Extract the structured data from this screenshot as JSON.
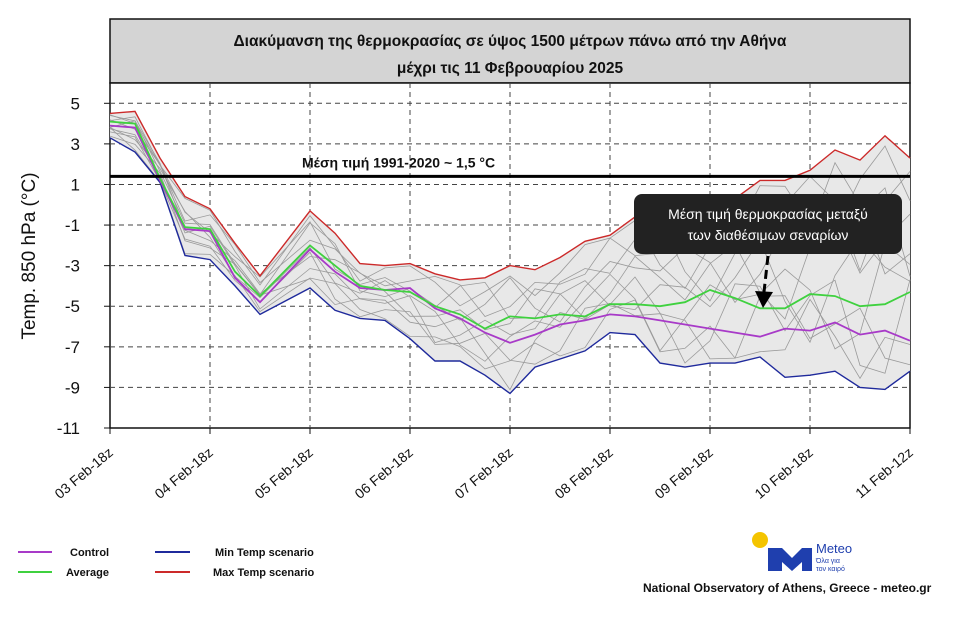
{
  "chart_data": {
    "type": "line",
    "title_line1": "Διακύμανση της θερμοκρασίας σε ύψος 1500 μέτρων πάνω από την Αθήνα",
    "title_line2": "μέχρι τις 11 Φεβρουαρίου 2025",
    "ylabel": "Temp. 850 hPa (°C)",
    "ylim": [
      -11,
      6
    ],
    "yticks": [
      5,
      3,
      1,
      -1,
      -3,
      -5,
      -7,
      -9,
      -11
    ],
    "xlim": [
      0,
      8
    ],
    "xtick_positions": [
      0,
      1,
      2,
      3,
      4,
      5,
      6,
      7,
      8
    ],
    "xtick_labels": [
      "03 Feb-18z",
      "04 Feb-18z",
      "05 Feb-18z",
      "06 Feb-18z",
      "07 Feb-18z",
      "08 Feb-18z",
      "09 Feb-18z",
      "10 Feb-18z",
      "11 Feb-12z"
    ],
    "grid": true,
    "reference_line": {
      "value": 1.4,
      "label": "Μέση τιμή 1991-2020  ~ 1,5 °C"
    },
    "annotation": {
      "text_line1": "Μέση τιμή θερμοκρασίας μεταξύ",
      "text_line2": "των διαθέσιμων σεναρίων"
    },
    "x": [
      0,
      0.25,
      0.5,
      0.75,
      1.0,
      1.25,
      1.5,
      2.0,
      2.25,
      2.5,
      2.75,
      3.0,
      3.25,
      3.5,
      3.75,
      4.0,
      4.25,
      4.5,
      4.75,
      5.0,
      5.25,
      5.5,
      5.75,
      6.0,
      6.25,
      6.5,
      6.75,
      7.0,
      7.25,
      7.5,
      7.75,
      8.0
    ],
    "series": [
      {
        "name": "Max Temp scenario",
        "color": "#cc2a2a",
        "values": [
          4.5,
          4.6,
          2.3,
          0.4,
          -0.2,
          -1.9,
          -3.5,
          -0.3,
          -1.4,
          -2.9,
          -3.0,
          -2.9,
          -3.4,
          -3.7,
          -3.6,
          -3.0,
          -3.2,
          -2.6,
          -1.8,
          -1.5,
          -0.6,
          -0.5,
          -1.2,
          -0.9,
          0.3,
          1.2,
          1.2,
          1.7,
          2.7,
          2.2,
          3.4,
          2.3
        ]
      },
      {
        "name": "Min Temp scenario",
        "color": "#1f2a9c",
        "values": [
          3.3,
          2.6,
          1.1,
          -2.5,
          -2.7,
          -4.0,
          -5.4,
          -4.1,
          -5.2,
          -5.6,
          -5.7,
          -6.6,
          -7.7,
          -7.7,
          -8.4,
          -9.3,
          -8.0,
          -7.6,
          -7.2,
          -6.3,
          -6.4,
          -7.8,
          -8.0,
          -7.8,
          -7.8,
          -7.5,
          -8.5,
          -8.4,
          -8.2,
          -9.0,
          -9.1,
          -8.2
        ]
      },
      {
        "name": "Control",
        "color": "#a83ac8",
        "values": [
          3.9,
          3.8,
          1.2,
          -1.2,
          -1.3,
          -3.6,
          -4.8,
          -2.2,
          -3.3,
          -4.1,
          -4.2,
          -4.1,
          -5.1,
          -5.6,
          -6.3,
          -6.8,
          -6.4,
          -5.9,
          -5.7,
          -5.4,
          -5.5,
          -5.7,
          -5.9,
          -6.1,
          -6.3,
          -6.5,
          -6.1,
          -6.2,
          -5.8,
          -6.4,
          -6.2,
          -6.7
        ]
      },
      {
        "name": "Average",
        "color": "#3fd13f",
        "values": [
          4.1,
          4.0,
          1.3,
          -1.1,
          -1.2,
          -3.3,
          -4.5,
          -2.0,
          -3.0,
          -4.0,
          -4.2,
          -4.3,
          -5.0,
          -5.4,
          -6.1,
          -5.5,
          -5.6,
          -5.4,
          -5.5,
          -4.9,
          -4.9,
          -5.0,
          -4.8,
          -4.2,
          -4.6,
          -5.1,
          -5.1,
          -4.4,
          -4.5,
          -5.0,
          -4.9,
          -4.3
        ]
      }
    ],
    "legend": [
      {
        "label": "Control",
        "color": "#a83ac8"
      },
      {
        "label": "Average",
        "color": "#3fd13f"
      },
      {
        "label": "Min Temp scenario",
        "color": "#1f2a9c"
      },
      {
        "label": "Max Temp scenario",
        "color": "#cc2a2a"
      }
    ],
    "legend_position": "bottom-left"
  },
  "branding": {
    "logo_name": "Meteo",
    "logo_tagline_1": "Όλα για",
    "logo_tagline_2": "τον καιρό",
    "footer": "National Observatory of Athens, Greece - meteo.gr",
    "logo_blue": "#1f3fae",
    "logo_yellow": "#f4c400"
  }
}
